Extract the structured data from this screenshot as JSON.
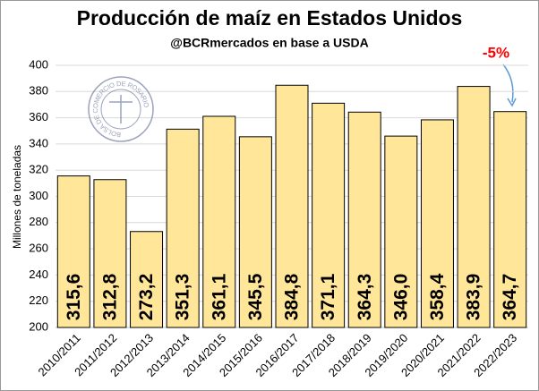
{
  "chart_data": {
    "type": "bar",
    "title": "Producción de maíz en Estados Unidos",
    "subtitle": "@BCRmercados en base a USDA",
    "y_label": "Millones de toneladas",
    "logo_text": "BOLSA DE COMERCIO DE ROSARIO",
    "annotation": "-5%",
    "categories": [
      "2010/2011",
      "2011/2012",
      "2012/2013",
      "2013/2014",
      "2014/2015",
      "2015/2016",
      "2016/2017",
      "2017/2018",
      "2018/2019",
      "2019/2020",
      "2020/2021",
      "2021/2022",
      "2022/2023"
    ],
    "values": [
      315.6,
      312.8,
      273.2,
      351.3,
      361.1,
      345.5,
      384.8,
      371.1,
      364.3,
      346.0,
      358.4,
      383.9,
      364.7
    ],
    "value_labels": [
      "315,6",
      "312,8",
      "273,2",
      "351,3",
      "361,1",
      "345,5",
      "384,8",
      "371,1",
      "364,3",
      "346,0",
      "358,4",
      "383,9",
      "364,7"
    ],
    "color": "#ffe699",
    "ylim": [
      200,
      400
    ],
    "yticks": [
      200,
      220,
      240,
      260,
      280,
      300,
      320,
      340,
      360,
      380,
      400
    ],
    "grid": true
  }
}
